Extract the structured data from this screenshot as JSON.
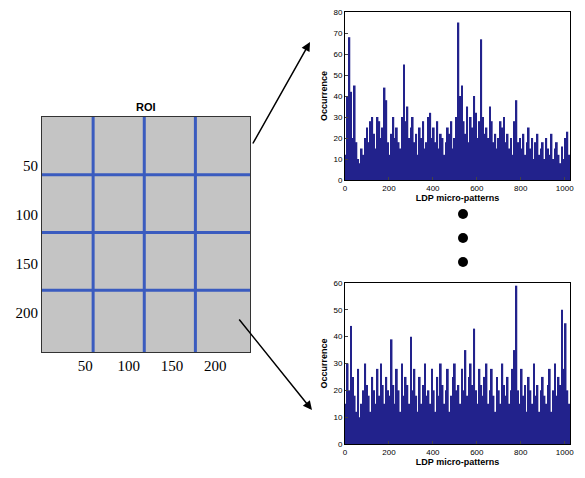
{
  "chart_data": [
    {
      "type": "image",
      "title": "ROI",
      "xlim": [
        0,
        240
      ],
      "ylim": [
        240,
        0
      ],
      "xticks": [
        50,
        100,
        150,
        200
      ],
      "yticks": [
        50,
        100,
        150,
        200
      ],
      "cell_edges_x": [
        59,
        118,
        177
      ],
      "cell_edges_y": [
        59,
        118,
        177
      ],
      "color": "#3a5bbf"
    },
    {
      "type": "histogram",
      "x_label": "LDP micro-patterns",
      "y_label": "Occurrence",
      "bins": [
        0,
        8,
        16,
        24,
        32,
        40,
        48,
        56,
        64,
        72,
        80,
        88,
        96,
        104,
        112,
        120,
        128,
        136,
        144,
        152,
        160,
        168,
        176,
        184,
        192,
        200,
        208,
        216,
        224,
        232,
        240,
        248,
        256,
        264,
        272,
        280,
        288,
        296,
        304,
        312,
        320,
        328,
        336,
        344,
        352,
        360,
        368,
        376,
        384,
        392,
        400,
        408,
        416,
        424,
        432,
        440,
        448,
        456,
        464,
        472,
        480,
        488,
        496,
        504,
        512,
        520,
        528,
        536,
        544,
        552,
        560,
        568,
        576,
        584,
        592,
        600,
        608,
        616,
        624,
        632,
        640,
        648,
        656,
        664,
        672,
        680,
        688,
        696,
        704,
        712,
        720,
        728,
        736,
        744,
        752,
        760,
        768,
        776,
        784,
        792,
        800,
        808,
        816,
        824,
        832,
        840,
        848,
        856,
        864,
        872,
        880,
        888,
        896,
        904,
        912,
        920,
        928,
        936,
        944,
        952,
        960,
        968,
        976,
        984,
        992,
        1000,
        1008,
        1016,
        1024
      ],
      "counts": [
        12,
        40,
        68,
        42,
        20,
        45,
        18,
        10,
        8,
        15,
        12,
        20,
        25,
        18,
        28,
        30,
        22,
        15,
        30,
        28,
        20,
        25,
        44,
        38,
        18,
        12,
        22,
        30,
        20,
        25,
        18,
        15,
        30,
        55,
        28,
        35,
        20,
        25,
        30,
        18,
        22,
        12,
        25,
        20,
        28,
        15,
        18,
        30,
        32,
        20,
        25,
        18,
        28,
        15,
        22,
        20,
        12,
        18,
        25,
        22,
        28,
        15,
        20,
        30,
        75,
        40,
        45,
        28,
        22,
        35,
        18,
        30,
        25,
        40,
        32,
        20,
        28,
        67,
        30,
        22,
        25,
        20,
        35,
        28,
        18,
        22,
        15,
        20,
        28,
        25,
        30,
        18,
        22,
        15,
        20,
        12,
        28,
        38,
        18,
        20,
        15,
        22,
        12,
        18,
        25,
        15,
        20,
        10,
        18,
        22,
        12,
        15,
        18,
        10,
        20,
        15,
        12,
        22,
        10,
        15,
        18,
        12,
        8,
        16,
        10,
        20,
        23,
        12
      ],
      "color": "#22228c",
      "xlim": [
        0,
        1024
      ],
      "xticks": [
        0,
        200,
        400,
        600,
        800,
        1000
      ],
      "ylim": [
        0,
        80
      ],
      "yticks": [
        0,
        10,
        20,
        30,
        40,
        50,
        60,
        70,
        80
      ]
    },
    {
      "type": "histogram",
      "x_label": "LDP micro-patterns",
      "y_label": "Occurrence",
      "bins": [
        0,
        8,
        16,
        24,
        32,
        40,
        48,
        56,
        64,
        72,
        80,
        88,
        96,
        104,
        112,
        120,
        128,
        136,
        144,
        152,
        160,
        168,
        176,
        184,
        192,
        200,
        208,
        216,
        224,
        232,
        240,
        248,
        256,
        264,
        272,
        280,
        288,
        296,
        304,
        312,
        320,
        328,
        336,
        344,
        352,
        360,
        368,
        376,
        384,
        392,
        400,
        408,
        416,
        424,
        432,
        440,
        448,
        456,
        464,
        472,
        480,
        488,
        496,
        504,
        512,
        520,
        528,
        536,
        544,
        552,
        560,
        568,
        576,
        584,
        592,
        600,
        608,
        616,
        624,
        632,
        640,
        648,
        656,
        664,
        672,
        680,
        688,
        696,
        704,
        712,
        720,
        728,
        736,
        744,
        752,
        760,
        768,
        776,
        784,
        792,
        800,
        808,
        816,
        824,
        832,
        840,
        848,
        856,
        864,
        872,
        880,
        888,
        896,
        904,
        912,
        920,
        928,
        936,
        944,
        952,
        960,
        968,
        976,
        984,
        992,
        1000,
        1008,
        1016,
        1024
      ],
      "counts": [
        15,
        30,
        20,
        44,
        25,
        18,
        12,
        28,
        10,
        15,
        20,
        30,
        22,
        18,
        12,
        25,
        20,
        15,
        28,
        18,
        30,
        22,
        15,
        25,
        20,
        18,
        39,
        22,
        15,
        28,
        20,
        12,
        30,
        18,
        25,
        22,
        15,
        40,
        20,
        28,
        18,
        12,
        25,
        15,
        22,
        30,
        18,
        20,
        15,
        28,
        20,
        12,
        25,
        18,
        30,
        22,
        15,
        20,
        28,
        12,
        18,
        25,
        30,
        20,
        22,
        15,
        28,
        20,
        35,
        18,
        25,
        30,
        22,
        43,
        20,
        15,
        28,
        22,
        18,
        25,
        30,
        15,
        20,
        28,
        18,
        12,
        25,
        20,
        15,
        30,
        22,
        18,
        25,
        15,
        20,
        28,
        35,
        59,
        20,
        15,
        28,
        18,
        22,
        12,
        25,
        20,
        15,
        30,
        18,
        22,
        12,
        20,
        25,
        18,
        15,
        22,
        28,
        12,
        20,
        30,
        18,
        25,
        22,
        50,
        28,
        45,
        20,
        15
      ],
      "color": "#22228c",
      "xlim": [
        0,
        1024
      ],
      "xticks": [
        0,
        200,
        400,
        600,
        800,
        1000
      ],
      "ylim": [
        0,
        60
      ],
      "yticks": [
        0,
        10,
        20,
        30,
        40,
        50,
        60
      ]
    }
  ]
}
